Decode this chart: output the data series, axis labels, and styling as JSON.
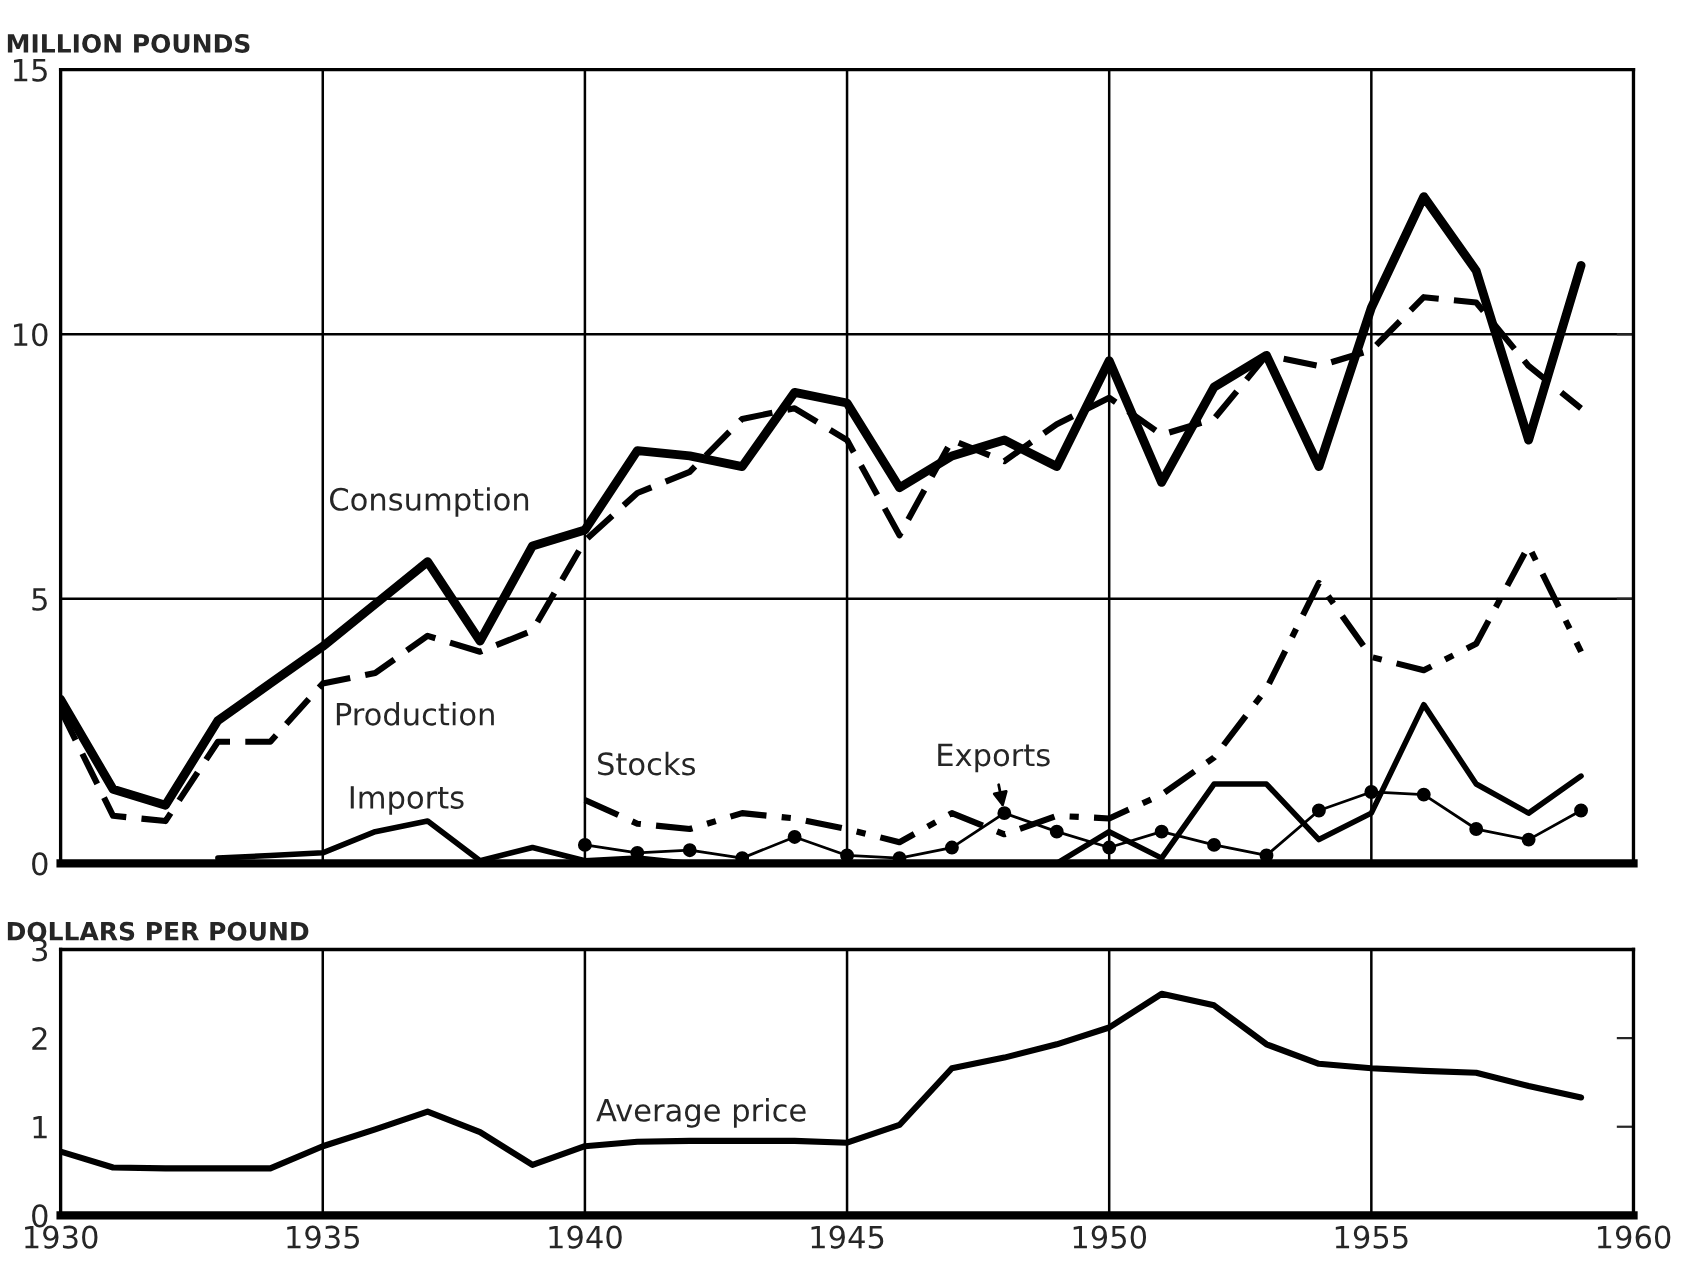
{
  "chart_data": [
    {
      "type": "line",
      "ylabel": "MILLION POUNDS",
      "x": [
        1930,
        1931,
        1932,
        1933,
        1934,
        1935,
        1936,
        1937,
        1938,
        1939,
        1940,
        1941,
        1942,
        1943,
        1944,
        1945,
        1946,
        1947,
        1948,
        1949,
        1950,
        1951,
        1952,
        1953,
        1954,
        1955,
        1956,
        1957,
        1958,
        1959
      ],
      "series": [
        {
          "name": "Consumption",
          "color": "#000000",
          "line_style": "solid",
          "values": [
            3.1,
            1.4,
            1.1,
            2.7,
            3.4,
            4.1,
            4.9,
            5.7,
            4.2,
            6.0,
            6.3,
            7.8,
            7.7,
            7.5,
            8.9,
            8.7,
            7.1,
            7.7,
            8.0,
            7.5,
            9.5,
            7.2,
            9.0,
            9.6,
            7.5,
            10.5,
            12.6,
            11.2,
            8.0,
            11.3
          ]
        },
        {
          "name": "Production",
          "color": "#000000",
          "line_style": "dashed",
          "values": [
            2.9,
            0.9,
            0.8,
            2.3,
            2.3,
            3.4,
            3.6,
            4.3,
            4.0,
            4.4,
            6.1,
            7.0,
            7.4,
            8.4,
            8.6,
            8.0,
            6.2,
            8.0,
            7.6,
            8.3,
            8.8,
            8.1,
            8.4,
            9.6,
            9.4,
            9.7,
            10.7,
            10.6,
            9.4,
            8.6
          ]
        },
        {
          "name": "Imports",
          "color": "#000000",
          "line_style": "solid",
          "values": [
            null,
            null,
            null,
            0.1,
            0.15,
            0.2,
            0.6,
            0.8,
            0.05,
            0.3,
            0.05,
            0.1,
            0,
            null,
            null,
            null,
            null,
            null,
            null,
            0,
            0.6,
            0.1,
            1.5,
            1.5,
            0.45,
            0.95,
            3.0,
            1.5,
            0.95,
            1.65
          ]
        },
        {
          "name": "Stocks",
          "color": "#000000",
          "line_style": "dashdot",
          "values": [
            null,
            null,
            null,
            null,
            null,
            null,
            null,
            null,
            null,
            null,
            1.2,
            0.75,
            0.65,
            0.95,
            0.85,
            0.65,
            0.4,
            0.95,
            0.55,
            0.9,
            0.85,
            1.3,
            2.0,
            3.3,
            5.3,
            3.9,
            3.65,
            4.15,
            6.0,
            4.0
          ]
        },
        {
          "name": "Exports",
          "color": "#000000",
          "line_style": "solid",
          "marker": "circle",
          "values": [
            null,
            null,
            null,
            null,
            null,
            null,
            null,
            null,
            null,
            null,
            0.35,
            0.2,
            0.25,
            0.1,
            0.5,
            0.15,
            0.1,
            0.3,
            0.95,
            0.6,
            0.3,
            0.6,
            0.35,
            0.15,
            1.0,
            1.35,
            1.3,
            0.65,
            0.45,
            1.0
          ]
        }
      ],
      "xlim": [
        1930,
        1960
      ],
      "xticks": [
        1930,
        1935,
        1940,
        1945,
        1950,
        1955,
        1960
      ],
      "ylim": [
        0,
        15
      ],
      "yticks": [
        0,
        5,
        10,
        15
      ],
      "grid": true,
      "tick_labels": "y"
    },
    {
      "type": "line",
      "ylabel": "DOLLARS PER POUND",
      "x": [
        1930,
        1931,
        1932,
        1933,
        1934,
        1935,
        1936,
        1937,
        1938,
        1939,
        1940,
        1941,
        1942,
        1943,
        1944,
        1945,
        1946,
        1947,
        1948,
        1949,
        1950,
        1951,
        1952,
        1953,
        1954,
        1955,
        1956,
        1957,
        1958,
        1959
      ],
      "series": [
        {
          "name": "Average price",
          "color": "#000000",
          "line_style": "solid",
          "values": [
            0.72,
            0.54,
            0.53,
            0.53,
            0.53,
            0.78,
            0.97,
            1.17,
            0.94,
            0.57,
            0.78,
            0.83,
            0.84,
            0.84,
            0.84,
            0.82,
            1.02,
            1.66,
            1.78,
            1.93,
            2.12,
            2.5,
            2.37,
            1.93,
            1.71,
            1.66,
            1.63,
            1.61,
            1.46,
            1.33
          ]
        }
      ],
      "xlim": [
        1930,
        1960
      ],
      "xticks": [
        1930,
        1935,
        1940,
        1945,
        1950,
        1955,
        1960
      ],
      "ylim": [
        0,
        3
      ],
      "yticks": [
        0,
        1,
        2,
        3
      ],
      "grid": "x"
    }
  ]
}
